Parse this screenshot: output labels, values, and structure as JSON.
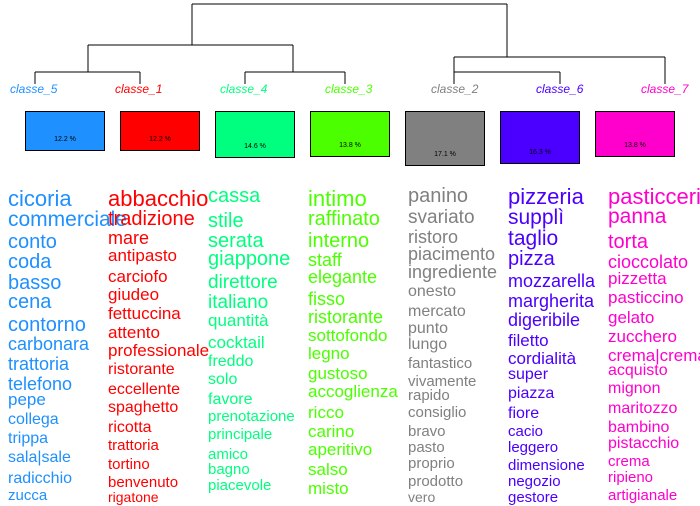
{
  "classes": [
    {
      "label": "classe_5",
      "pct": "12.2 %",
      "color": "#1E90FF",
      "box_color": "#1E90FF",
      "words": [
        "cicoria",
        "commerciale",
        "conto",
        "coda",
        "basso",
        "cena",
        "contorno",
        "carbonara",
        "trattoria",
        "telefono",
        "pepe",
        "collega",
        "trippa",
        "sala|sale",
        "radicchio",
        "zucca"
      ]
    },
    {
      "label": "classe_1",
      "pct": "12.2 %",
      "color": "#FF0000",
      "box_color": "#FF0000",
      "words": [
        "abbacchio",
        "tradizione",
        "mare",
        "antipasto",
        "carciofo",
        "giudeo",
        "fettuccina",
        "attento",
        "professionale",
        "ristorante",
        "eccellente",
        "spaghetto",
        "ricotta",
        "trattoria",
        "tortino",
        "benvenuto",
        "rigatone"
      ]
    },
    {
      "label": "classe_4",
      "pct": "14.6 %",
      "color": "#00FF7F",
      "box_color": "#00FF7F",
      "words": [
        "cassa",
        "stile",
        "serata",
        "giappone",
        "direttore",
        "italiano",
        "quantità",
        "cocktail",
        "freddo",
        "solo",
        "favore",
        "prenotazione",
        "principale",
        "amico",
        "bagno",
        "piacevole"
      ]
    },
    {
      "label": "classe_3",
      "pct": "13.8 %",
      "color": "#4CFF00",
      "box_color": "#4CFF00",
      "words": [
        "intimo",
        "raffinato",
        "interno",
        "staff",
        "elegante",
        "fisso",
        "ristorante",
        "sottofondo",
        "legno",
        "gustoso",
        "accoglienza",
        "ricco",
        "carino",
        "aperitivo",
        "salso",
        "misto"
      ]
    },
    {
      "label": "classe_2",
      "pct": "17.1 %",
      "color": "#808080",
      "box_color": "#808080",
      "words": [
        "panino",
        "svariato",
        "ristoro",
        "piacimento",
        "ingrediente",
        "onesto",
        "mercato",
        "punto",
        "lungo",
        "fantastico",
        "vivamente",
        "rapido",
        "consiglio",
        "bravo",
        "pasto",
        "proprio",
        "prodotto",
        "vero"
      ]
    },
    {
      "label": "classe_6",
      "pct": "16.3 %",
      "color": "#4B00FF",
      "box_color": "#4B00FF",
      "words": [
        "pizzeria",
        "supplì",
        "taglio",
        "pizza",
        "mozzarella",
        "margherita",
        "digeribile",
        "filetto",
        "cordialità",
        "super",
        "piazza",
        "fiore",
        "cacio",
        "leggero",
        "dimensione",
        "negozio",
        "gestore"
      ]
    },
    {
      "label": "classe_7",
      "pct": "13.8 %",
      "color": "#FF00CC",
      "box_color": "#FF00CC",
      "words": [
        "pasticceria",
        "panna",
        "torta",
        "cioccolato",
        "pizzetta",
        "pasticcino",
        "gelato",
        "zucchero",
        "crema|crema",
        "acquisto",
        "mignon",
        "maritozzo",
        "bambino",
        "pistacchio",
        "crema",
        "ripieno",
        "artigianale"
      ]
    }
  ]
}
